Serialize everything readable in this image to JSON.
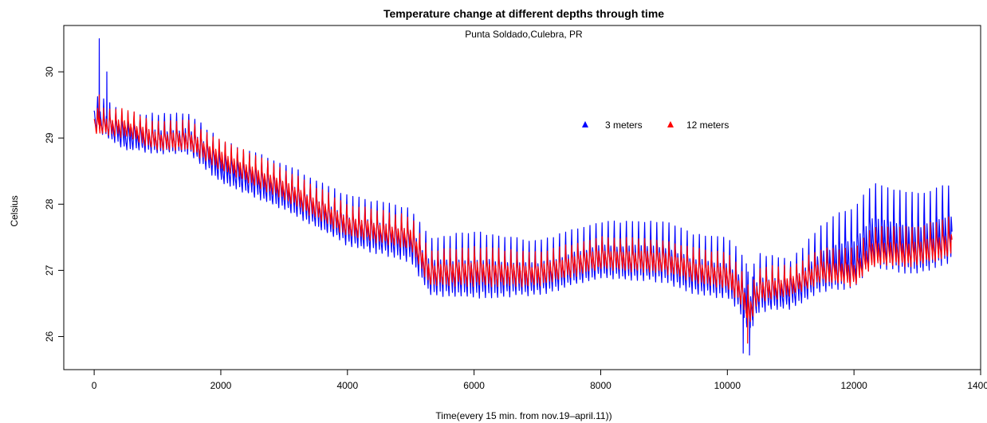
{
  "chart_data": {
    "type": "line",
    "title": "Temperature change at different depths through time",
    "subtitle": "Punta Soldado,Culebra, PR",
    "xlabel": "Time(every 15 min. from nov.19–april.11))",
    "ylabel": "Celsius",
    "xlim": [
      -480,
      14000
    ],
    "ylim": [
      25.5,
      30.7
    ],
    "xticks": [
      0,
      2000,
      4000,
      6000,
      8000,
      10000,
      12000,
      14000
    ],
    "xtick_labels": [
      "0",
      "2000",
      "4000",
      "6000",
      "8000",
      "10000",
      "12000",
      "14000"
    ],
    "yticks": [
      26,
      27,
      28,
      29,
      30
    ],
    "ytick_labels": [
      "26",
      "27",
      "28",
      "29",
      "30"
    ],
    "grid": false,
    "legend_position": "top-right",
    "cycle_length": 96,
    "x_end": 13550,
    "series": [
      {
        "name": "3 meters",
        "color": "#0000ff",
        "baseline": [
          [
            0,
            29.1
          ],
          [
            500,
            28.8
          ],
          [
            1000,
            28.75
          ],
          [
            1500,
            28.75
          ],
          [
            2000,
            28.3
          ],
          [
            3000,
            27.9
          ],
          [
            4000,
            27.35
          ],
          [
            5000,
            27.1
          ],
          [
            5300,
            26.6
          ],
          [
            6000,
            26.55
          ],
          [
            7000,
            26.6
          ],
          [
            8000,
            26.85
          ],
          [
            9000,
            26.8
          ],
          [
            9500,
            26.6
          ],
          [
            10000,
            26.55
          ],
          [
            10200,
            26.35
          ],
          [
            10350,
            26.0
          ],
          [
            10500,
            26.35
          ],
          [
            11000,
            26.4
          ],
          [
            11500,
            26.65
          ],
          [
            12000,
            26.7
          ],
          [
            12300,
            27.0
          ],
          [
            13000,
            26.9
          ],
          [
            13550,
            27.1
          ]
        ],
        "amplitude": [
          [
            0,
            0.6
          ],
          [
            2000,
            0.7
          ],
          [
            5000,
            0.9
          ],
          [
            6000,
            1.1
          ],
          [
            7000,
            0.9
          ],
          [
            9000,
            1.0
          ],
          [
            10400,
            1.0
          ],
          [
            11000,
            0.8
          ],
          [
            11800,
            1.3
          ],
          [
            12300,
            1.4
          ],
          [
            13550,
            1.3
          ]
        ],
        "peaks": [
          [
            80,
            30.5
          ],
          [
            200,
            30.0
          ],
          [
            10300,
            27.1
          ],
          [
            10400,
            26.9
          ]
        ],
        "troughs": [
          [
            10250,
            25.75
          ],
          [
            10350,
            25.72
          ]
        ]
      },
      {
        "name": "12 meters",
        "color": "#ff0000",
        "baseline": [
          [
            0,
            29.05
          ],
          [
            500,
            29.0
          ],
          [
            1000,
            28.8
          ],
          [
            1500,
            28.8
          ],
          [
            2000,
            28.5
          ],
          [
            3000,
            28.05
          ],
          [
            4000,
            27.5
          ],
          [
            5000,
            27.3
          ],
          [
            5300,
            26.75
          ],
          [
            6000,
            26.75
          ],
          [
            7000,
            26.75
          ],
          [
            8000,
            27.0
          ],
          [
            9000,
            26.95
          ],
          [
            9500,
            26.8
          ],
          [
            10000,
            26.7
          ],
          [
            10200,
            26.5
          ],
          [
            10350,
            26.15
          ],
          [
            10500,
            26.5
          ],
          [
            11000,
            26.6
          ],
          [
            11500,
            26.8
          ],
          [
            12000,
            26.75
          ],
          [
            12300,
            27.05
          ],
          [
            13000,
            27.05
          ],
          [
            13550,
            27.2
          ]
        ],
        "amplitude": [
          [
            0,
            0.45
          ],
          [
            2000,
            0.5
          ],
          [
            5000,
            0.55
          ],
          [
            6000,
            0.65
          ],
          [
            7000,
            0.55
          ],
          [
            9000,
            0.55
          ],
          [
            10400,
            0.6
          ],
          [
            11000,
            0.5
          ],
          [
            11800,
            0.6
          ],
          [
            12300,
            0.65
          ],
          [
            13550,
            0.65
          ]
        ],
        "peaks": [
          [
            80,
            29.65
          ]
        ],
        "troughs": [
          [
            10320,
            25.9
          ]
        ]
      }
    ]
  }
}
